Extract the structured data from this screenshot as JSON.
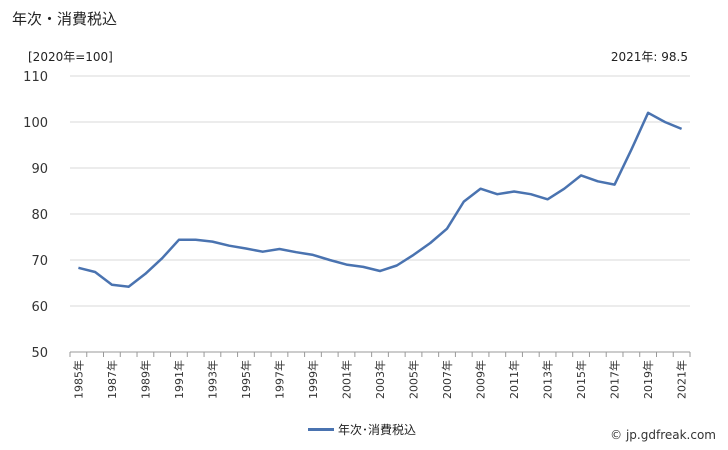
{
  "title": "年次・消費税込",
  "unit_label": "[2020年=100]",
  "latest_value_label": "2021年: 98.5",
  "source": "© jp.gdfreak.com",
  "chart_data": {
    "type": "line",
    "title": "年次・消費税込",
    "ylabel": "[2020年=100]",
    "xlabel": "",
    "ylim": [
      50,
      110
    ],
    "yticks": [
      50,
      60,
      70,
      80,
      90,
      100,
      110
    ],
    "grid": true,
    "legend": "bottom-center",
    "x": [
      "1985年",
      "1986年",
      "1987年",
      "1988年",
      "1989年",
      "1990年",
      "1991年",
      "1992年",
      "1993年",
      "1994年",
      "1995年",
      "1996年",
      "1997年",
      "1998年",
      "1999年",
      "2000年",
      "2001年",
      "2002年",
      "2003年",
      "2004年",
      "2005年",
      "2006年",
      "2007年",
      "2008年",
      "2009年",
      "2010年",
      "2011年",
      "2012年",
      "2013年",
      "2014年",
      "2015年",
      "2016年",
      "2017年",
      "2018年",
      "2019年",
      "2020年",
      "2021年"
    ],
    "xtick_labels": [
      "1985年",
      "1987年",
      "1989年",
      "1991年",
      "1993年",
      "1995年",
      "1997年",
      "1999年",
      "2001年",
      "2003年",
      "2005年",
      "2007年",
      "2009年",
      "2011年",
      "2013年",
      "2015年",
      "2017年",
      "2019年",
      "2021年"
    ],
    "series": [
      {
        "name": "年次･消費税込",
        "color": "#4a73b0",
        "values": [
          68.3,
          67.4,
          64.6,
          64.2,
          67.0,
          70.4,
          74.4,
          74.4,
          74.0,
          73.1,
          72.5,
          71.8,
          72.4,
          71.7,
          71.1,
          70.0,
          69.0,
          68.5,
          67.6,
          68.8,
          71.1,
          73.7,
          76.8,
          82.7,
          85.5,
          84.3,
          84.9,
          84.3,
          83.2,
          85.5,
          88.4,
          87.1,
          86.4,
          94.0,
          102.0,
          100.0,
          98.5
        ]
      }
    ]
  }
}
